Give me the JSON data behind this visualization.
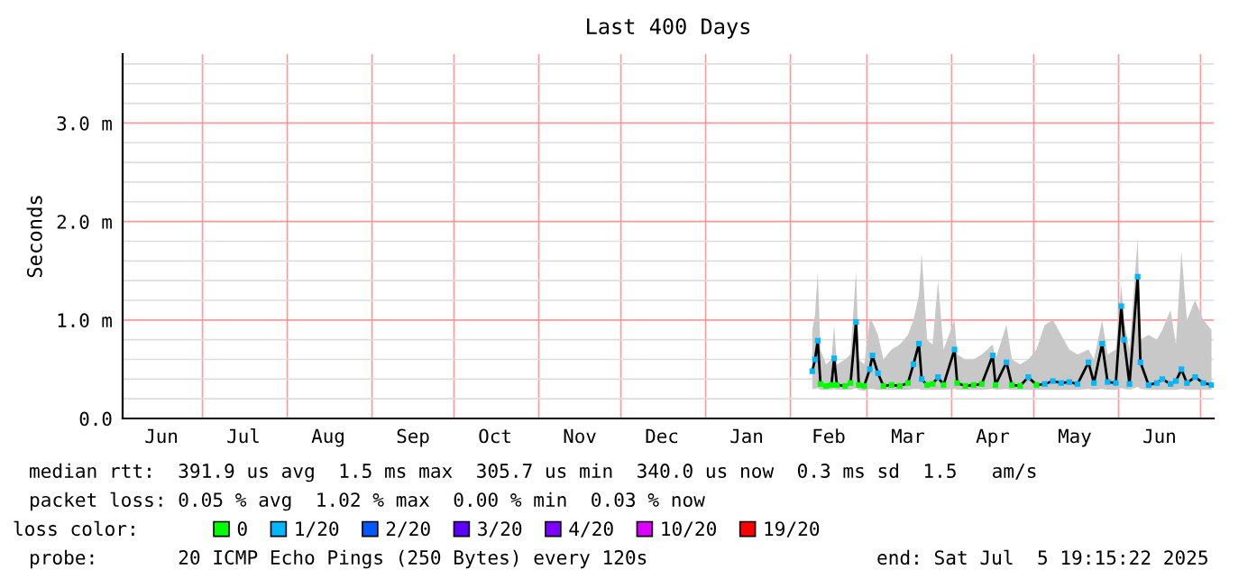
{
  "chart_data": {
    "type": "line",
    "title": "Last 400 Days",
    "ylabel": "Seconds",
    "xlim": [
      "2024-06-01T19:15",
      "2025-07-05T19:15"
    ],
    "xticks": [
      {
        "value": "2024-06-16",
        "label": "Jun"
      },
      {
        "value": "2024-07-01",
        "label": null
      },
      {
        "value": "2024-07-16",
        "label": "Jul"
      },
      {
        "value": "2024-08-01",
        "label": null
      },
      {
        "value": "2024-08-16",
        "label": "Aug"
      },
      {
        "value": "2024-09-01",
        "label": null
      },
      {
        "value": "2024-09-16",
        "label": "Sep"
      },
      {
        "value": "2024-10-01",
        "label": null
      },
      {
        "value": "2024-10-16",
        "label": "Oct"
      },
      {
        "value": "2024-11-01",
        "label": null
      },
      {
        "value": "2024-11-16",
        "label": "Nov"
      },
      {
        "value": "2024-12-01",
        "label": null
      },
      {
        "value": "2024-12-16",
        "label": "Dec"
      },
      {
        "value": "2025-01-01",
        "label": null
      },
      {
        "value": "2025-01-16",
        "label": "Jan"
      },
      {
        "value": "2025-02-01",
        "label": null
      },
      {
        "value": "2025-02-15",
        "label": "Feb"
      },
      {
        "value": "2025-03-01",
        "label": null
      },
      {
        "value": "2025-03-16",
        "label": "Mar"
      },
      {
        "value": "2025-04-01",
        "label": null
      },
      {
        "value": "2025-04-16",
        "label": "Apr"
      },
      {
        "value": "2025-05-01",
        "label": null
      },
      {
        "value": "2025-05-16",
        "label": "May"
      },
      {
        "value": "2025-06-01",
        "label": null
      },
      {
        "value": "2025-06-16",
        "label": "Jun"
      },
      {
        "value": "2025-07-01",
        "label": null
      }
    ],
    "ylim": [
      0,
      3.7
    ],
    "yticks": [
      {
        "value": 0,
        "label": "0.0"
      },
      {
        "value": 0.2,
        "label": null
      },
      {
        "value": 0.4,
        "label": null
      },
      {
        "value": 0.6,
        "label": null
      },
      {
        "value": 0.8,
        "label": null
      },
      {
        "value": 1.0,
        "label": "1.0 m"
      },
      {
        "value": 1.2,
        "label": null
      },
      {
        "value": 1.4,
        "label": null
      },
      {
        "value": 1.6,
        "label": null
      },
      {
        "value": 1.8,
        "label": null
      },
      {
        "value": 2.0,
        "label": "2.0 m"
      },
      {
        "value": 2.2,
        "label": null
      },
      {
        "value": 2.4,
        "label": null
      },
      {
        "value": 2.6,
        "label": null
      },
      {
        "value": 2.8,
        "label": null
      },
      {
        "value": 3.0,
        "label": "3.0 m"
      },
      {
        "value": 3.2,
        "label": null
      },
      {
        "value": 3.4,
        "label": null
      },
      {
        "value": 3.6,
        "label": null
      }
    ],
    "grid": true,
    "legend": "bottom",
    "legend_title": "loss color:",
    "x": [
      "2025-02-09",
      "2025-02-10",
      "2025-02-11",
      "2025-02-12",
      "2025-02-14",
      "2025-02-16",
      "2025-02-17",
      "2025-02-18",
      "2025-02-21",
      "2025-02-23",
      "2025-02-25",
      "2025-02-26",
      "2025-02-28",
      "2025-03-02",
      "2025-03-03",
      "2025-03-05",
      "2025-03-07",
      "2025-03-10",
      "2025-03-13",
      "2025-03-16",
      "2025-03-18",
      "2025-03-20",
      "2025-03-21",
      "2025-03-23",
      "2025-03-25",
      "2025-03-27",
      "2025-03-29",
      "2025-04-02",
      "2025-04-03",
      "2025-04-06",
      "2025-04-09",
      "2025-04-12",
      "2025-04-16",
      "2025-04-17",
      "2025-04-21",
      "2025-04-23",
      "2025-04-26",
      "2025-04-29",
      "2025-05-02",
      "2025-05-05",
      "2025-05-08",
      "2025-05-11",
      "2025-05-14",
      "2025-05-17",
      "2025-05-21",
      "2025-05-23",
      "2025-05-26",
      "2025-05-28",
      "2025-05-31",
      "2025-06-02",
      "2025-06-03",
      "2025-06-05",
      "2025-06-08",
      "2025-06-09",
      "2025-06-12",
      "2025-06-15",
      "2025-06-17",
      "2025-06-20",
      "2025-06-22",
      "2025-06-24",
      "2025-06-26",
      "2025-06-29",
      "2025-07-02",
      "2025-07-05"
    ],
    "series": [
      {
        "color": "#000000",
        "values": [
          0.48,
          0.6,
          0.79,
          0.35,
          0.33,
          0.34,
          0.61,
          0.34,
          0.33,
          0.36,
          0.98,
          0.34,
          0.33,
          0.5,
          0.64,
          0.46,
          0.33,
          0.34,
          0.33,
          0.36,
          0.55,
          0.76,
          0.4,
          0.34,
          0.35,
          0.42,
          0.34,
          0.7,
          0.36,
          0.33,
          0.34,
          0.35,
          0.64,
          0.34,
          0.57,
          0.34,
          0.33,
          0.42,
          0.34,
          0.35,
          0.38,
          0.36,
          0.37,
          0.35,
          0.57,
          0.36,
          0.76,
          0.37,
          0.36,
          1.14,
          0.8,
          0.35,
          1.44,
          0.57,
          0.34,
          0.36,
          0.4,
          0.35,
          0.38,
          0.5,
          0.36,
          0.42,
          0.36,
          0.34
        ],
        "lower": [
          0.3,
          0.3,
          0.31,
          0.29,
          0.29,
          0.29,
          0.3,
          0.29,
          0.29,
          0.29,
          0.31,
          0.29,
          0.28,
          0.3,
          0.3,
          0.29,
          0.29,
          0.29,
          0.29,
          0.29,
          0.3,
          0.3,
          0.29,
          0.29,
          0.29,
          0.29,
          0.29,
          0.3,
          0.29,
          0.29,
          0.29,
          0.29,
          0.3,
          0.29,
          0.3,
          0.29,
          0.29,
          0.29,
          0.29,
          0.29,
          0.29,
          0.29,
          0.29,
          0.29,
          0.3,
          0.29,
          0.3,
          0.29,
          0.29,
          0.31,
          0.3,
          0.29,
          0.32,
          0.3,
          0.29,
          0.29,
          0.29,
          0.29,
          0.29,
          0.3,
          0.29,
          0.29,
          0.29,
          0.29
        ],
        "upper": [
          0.9,
          1.05,
          1.49,
          0.7,
          0.55,
          0.6,
          0.95,
          0.55,
          0.6,
          0.65,
          1.5,
          0.6,
          0.55,
          1.0,
          0.98,
          0.85,
          0.6,
          0.7,
          0.75,
          0.85,
          1.0,
          1.25,
          1.68,
          0.8,
          0.75,
          1.4,
          0.7,
          1.0,
          0.65,
          0.6,
          0.6,
          0.65,
          0.75,
          0.6,
          0.95,
          0.6,
          0.55,
          0.6,
          0.7,
          0.95,
          1.0,
          0.85,
          0.7,
          0.65,
          0.7,
          0.6,
          1.0,
          0.65,
          0.7,
          1.36,
          1.0,
          0.7,
          1.83,
          0.8,
          0.85,
          0.8,
          0.9,
          1.1,
          0.75,
          1.7,
          1.0,
          1.2,
          1.0,
          0.9
        ]
      },
      {
        "type": "scatter",
        "name": "0",
        "color": "#00ff00",
        "values": [
          null,
          null,
          null,
          0.35,
          0.33,
          0.34,
          null,
          0.34,
          0.33,
          0.36,
          null,
          0.34,
          0.33,
          null,
          null,
          null,
          0.33,
          0.34,
          0.33,
          0.36,
          null,
          null,
          null,
          0.34,
          0.35,
          null,
          0.34,
          null,
          0.36,
          0.33,
          0.34,
          0.35,
          null,
          0.34,
          null,
          0.34,
          0.33,
          null,
          0.34,
          null,
          null,
          null,
          null,
          null,
          null,
          null,
          null,
          null,
          null,
          null,
          null,
          null,
          null,
          null,
          null,
          null,
          null,
          null,
          null,
          null,
          null,
          null,
          null,
          null
        ]
      },
      {
        "type": "scatter",
        "name": "1/20",
        "color": "#00b8ff",
        "values": [
          0.48,
          0.6,
          0.79,
          null,
          null,
          null,
          0.61,
          null,
          null,
          null,
          0.98,
          null,
          null,
          0.5,
          0.64,
          0.46,
          null,
          null,
          null,
          null,
          0.55,
          0.76,
          0.4,
          null,
          null,
          0.42,
          null,
          0.7,
          null,
          null,
          null,
          null,
          0.64,
          null,
          0.57,
          null,
          null,
          0.42,
          null,
          0.35,
          0.38,
          0.36,
          0.37,
          0.35,
          0.57,
          0.36,
          0.76,
          0.37,
          0.36,
          1.14,
          0.8,
          0.35,
          1.44,
          0.57,
          0.34,
          0.36,
          0.4,
          0.35,
          0.38,
          0.5,
          0.36,
          0.42,
          0.36,
          0.34
        ]
      },
      {
        "type": "scatter",
        "name": "2/20",
        "color": "#0059ff",
        "values": [
          null,
          null,
          null,
          null,
          null,
          null,
          null,
          null,
          null,
          null,
          null,
          null,
          null,
          null,
          null,
          null,
          null,
          null,
          null,
          null,
          null,
          null,
          null,
          null,
          null,
          null,
          null,
          null,
          null,
          null,
          null,
          null,
          null,
          null,
          null,
          null,
          null,
          null,
          null,
          null,
          null,
          null,
          null,
          null,
          null,
          null,
          null,
          null,
          null,
          null,
          null,
          null,
          null,
          null,
          null,
          null,
          null,
          null,
          null,
          null,
          null,
          null,
          null,
          null
        ]
      },
      {
        "type": "scatter",
        "name": "3/20",
        "color": "#5e00ff",
        "values": [
          null,
          null,
          null,
          null,
          null,
          null,
          null,
          null,
          null,
          null,
          null,
          null,
          null,
          null,
          null,
          null,
          null,
          null,
          null,
          null,
          null,
          null,
          null,
          null,
          null,
          null,
          null,
          null,
          null,
          null,
          null,
          null,
          null,
          null,
          null,
          null,
          null,
          null,
          null,
          null,
          null,
          null,
          null,
          null,
          null,
          null,
          null,
          null,
          null,
          null,
          null,
          null,
          null,
          null,
          null,
          null,
          null,
          null,
          null,
          null,
          null,
          null,
          null,
          null
        ]
      },
      {
        "type": "scatter",
        "name": "4/20",
        "color": "#7e00ff",
        "values": [
          null,
          null,
          null,
          null,
          null,
          null,
          null,
          null,
          null,
          null,
          null,
          null,
          null,
          null,
          null,
          null,
          null,
          null,
          null,
          null,
          null,
          null,
          null,
          null,
          null,
          null,
          null,
          null,
          null,
          null,
          null,
          null,
          null,
          null,
          null,
          null,
          null,
          null,
          null,
          null,
          null,
          null,
          null,
          null,
          null,
          null,
          null,
          null,
          null,
          null,
          null,
          null,
          null,
          null,
          null,
          null,
          null,
          null,
          null,
          null,
          null,
          null,
          null,
          null
        ]
      },
      {
        "type": "scatter",
        "name": "10/20",
        "color": "#dd00ff",
        "values": [
          null,
          null,
          null,
          null,
          null,
          null,
          null,
          null,
          null,
          null,
          null,
          null,
          null,
          null,
          null,
          null,
          null,
          null,
          null,
          null,
          null,
          null,
          null,
          null,
          null,
          null,
          null,
          null,
          null,
          null,
          null,
          null,
          null,
          null,
          null,
          null,
          null,
          null,
          null,
          null,
          null,
          null,
          null,
          null,
          null,
          null,
          null,
          null,
          null,
          null,
          null,
          null,
          null,
          null,
          null,
          null,
          null,
          null,
          null,
          null,
          null,
          null,
          null,
          null
        ]
      },
      {
        "type": "scatter",
        "name": "19/20",
        "color": "#ff0000",
        "values": [
          null,
          null,
          null,
          null,
          null,
          null,
          null,
          null,
          null,
          null,
          null,
          null,
          null,
          null,
          null,
          null,
          null,
          null,
          null,
          null,
          null,
          null,
          null,
          null,
          null,
          null,
          null,
          null,
          null,
          null,
          null,
          null,
          null,
          null,
          null,
          null,
          null,
          null,
          null,
          null,
          null,
          null,
          null,
          null,
          null,
          null,
          null,
          null,
          null,
          null,
          null,
          null,
          null,
          null,
          null,
          null,
          null,
          null,
          null,
          null,
          null,
          null,
          null,
          null
        ]
      }
    ],
    "annotations": [
      "median rtt:  391.9 us avg  1.5 ms max  305.7 us min  340.0 us now  0.3 ms sd  1.5   am/s",
      "packet loss: 0.05 % avg  1.02 % max  0.00 % min  0.03 % now",
      "probe:       20 ICMP Echo Pings (250 Bytes) every 120s",
      "end: Sat Jul  5 19:15:22 2025"
    ]
  }
}
